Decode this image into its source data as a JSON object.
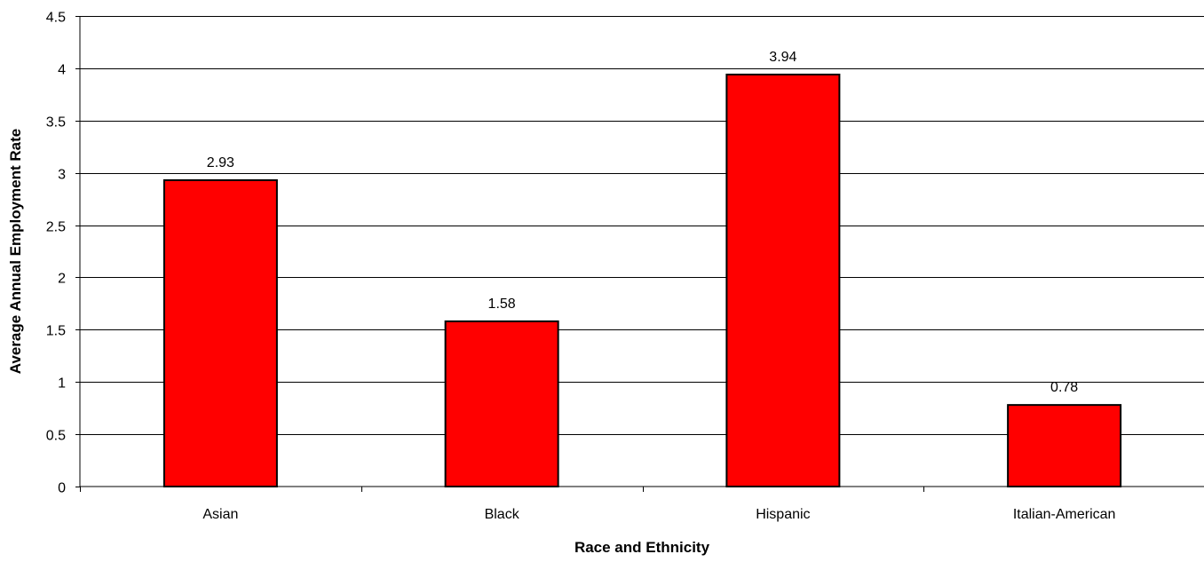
{
  "chart_data": {
    "type": "bar",
    "categories": [
      "Asian",
      "Black",
      "Hispanic",
      "Italian-American"
    ],
    "series": [
      {
        "values": [
          2.93,
          1.58,
          3.94,
          0.78
        ]
      }
    ],
    "data_labels": [
      "2.93",
      "1.58",
      "3.94",
      "0.78"
    ],
    "xlabel": "Race and Ethnicity",
    "ylabel": "Average Annual Employment Rate",
    "ylim": [
      0,
      4.5
    ],
    "yticks": [
      "0",
      "0.5",
      "1",
      "1.5",
      "2",
      "2.5",
      "3",
      "3.5",
      "4",
      "4.5"
    ],
    "grid": true,
    "legend": "none",
    "bar_color": "#ff0000",
    "bar_edge_color": "#000000",
    "grid_color": "#000000"
  }
}
